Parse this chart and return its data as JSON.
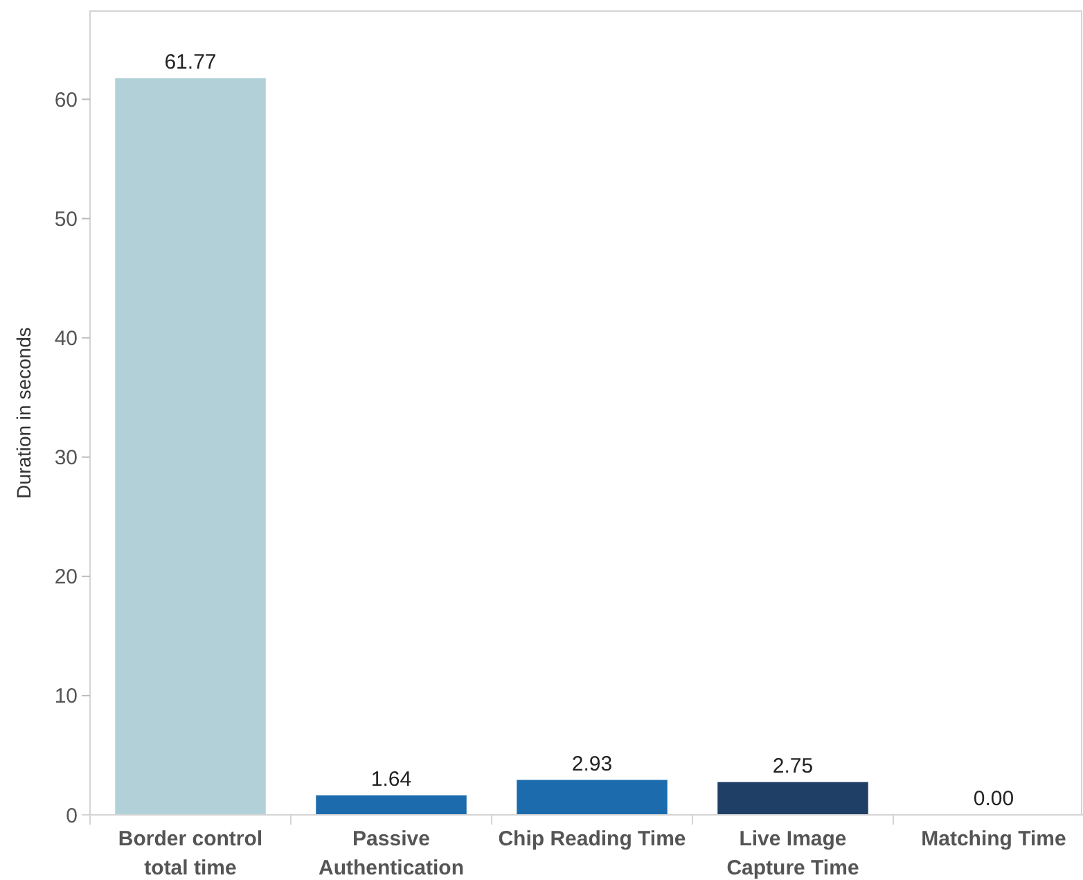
{
  "chart_data": {
    "type": "bar",
    "ylabel": "Duration in seconds",
    "categories": [
      "Border control total time",
      "Passive Authentication",
      "Chip Reading Time",
      "Live Image Capture Time",
      "Matching Time"
    ],
    "values": [
      61.77,
      1.64,
      2.93,
      2.75,
      0.0
    ],
    "value_labels": [
      "61.77",
      "1.64",
      "2.93",
      "2.75",
      "0.00"
    ],
    "colors": [
      "#b1d0d7",
      "#1c6cad",
      "#1c6cad",
      "#203f66",
      "#1c6cad"
    ],
    "ylim": [
      0,
      67.4
    ],
    "yticks": [
      0,
      10,
      20,
      30,
      40,
      50,
      60
    ],
    "grid": false
  }
}
